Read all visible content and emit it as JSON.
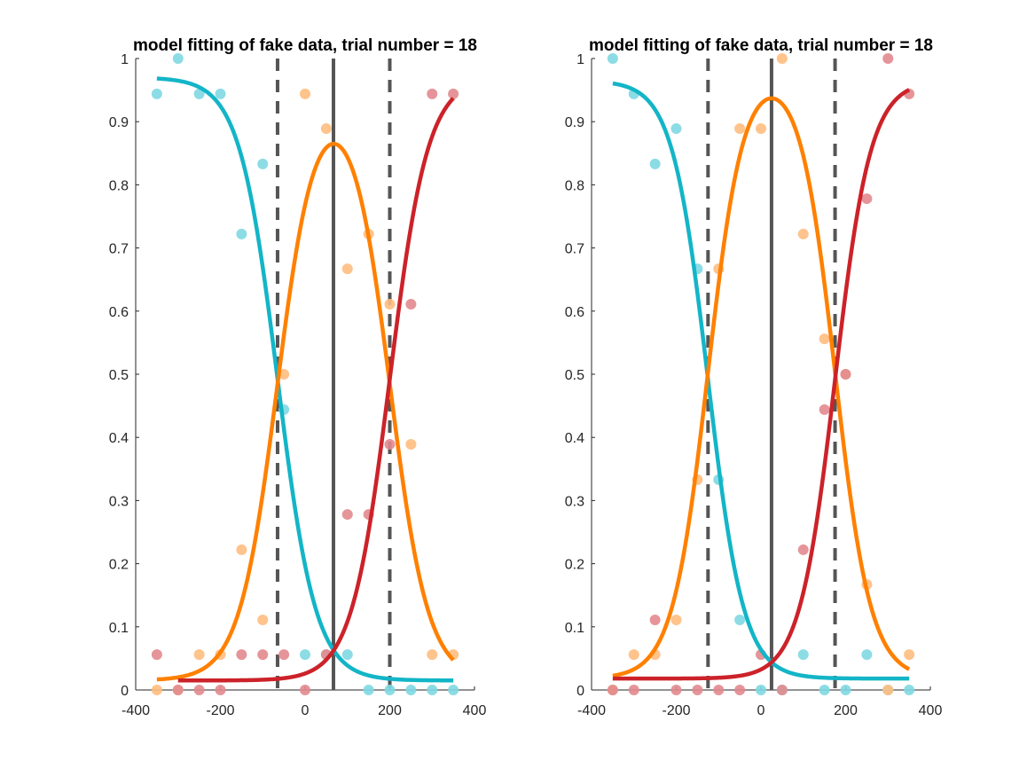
{
  "chart_data": [
    {
      "type": "scatter",
      "title": "model fitting of fake data, trial number = 18",
      "xlabel": "",
      "ylabel": "",
      "xlim": [
        -400,
        400
      ],
      "ylim": [
        0,
        1
      ],
      "xticks": [
        -400,
        -200,
        0,
        200,
        400
      ],
      "yticks": [
        0,
        0.1,
        0.2,
        0.3,
        0.4,
        0.5,
        0.6,
        0.7,
        0.8,
        0.9,
        1
      ],
      "grid": false,
      "legend": "none",
      "vertical_lines": [
        {
          "x": -65,
          "style": "dashed",
          "color": "#555555"
        },
        {
          "x": 67,
          "style": "solid",
          "color": "#555555"
        },
        {
          "x": 200,
          "style": "dashed",
          "color": "#555555"
        }
      ],
      "series": [
        {
          "color": "#13b5c7",
          "points_color": "#7fd8e2",
          "fit": {
            "kind": "left",
            "x_start": -350,
            "x_end": 350,
            "mu": -65,
            "sigma": 45,
            "low": 0.015,
            "high": 0.97
          },
          "points": [
            [
              -350,
              0.944
            ],
            [
              -300,
              1
            ],
            [
              -250,
              0.944
            ],
            [
              -200,
              0.944
            ],
            [
              -150,
              0.722
            ],
            [
              -100,
              0.833
            ],
            [
              -50,
              0.444
            ],
            [
              0,
              0.056
            ],
            [
              50,
              0.056
            ],
            [
              100,
              0.056
            ],
            [
              150,
              0
            ],
            [
              200,
              0
            ],
            [
              250,
              0
            ],
            [
              300,
              0
            ],
            [
              350,
              0
            ]
          ]
        },
        {
          "color": "#ff8000",
          "points_color": "#ffbd80",
          "fit": {
            "kind": "bump",
            "x_start": -350,
            "x_end": 350,
            "mu1": -65,
            "mu2": 200,
            "sigma": 45,
            "low": 0.015,
            "high": 0.97,
            "peak": 0.865
          },
          "points": [
            [
              -350,
              0
            ],
            [
              -300,
              0
            ],
            [
              -250,
              0.056
            ],
            [
              -200,
              0.056
            ],
            [
              -150,
              0.222
            ],
            [
              -100,
              0.111
            ],
            [
              -50,
              0.5
            ],
            [
              0,
              0.944
            ],
            [
              50,
              0.889
            ],
            [
              100,
              0.667
            ],
            [
              150,
              0.722
            ],
            [
              200,
              0.611
            ],
            [
              250,
              0.389
            ],
            [
              300,
              0.056
            ],
            [
              350,
              0.056
            ]
          ]
        },
        {
          "color": "#cc2229",
          "points_color": "#e28a8e",
          "fit": {
            "kind": "right",
            "x_start": -300,
            "x_end": 350,
            "mu": 200,
            "sigma": 45,
            "low": 0.015,
            "high": 0.97
          },
          "points": [
            [
              -350,
              0.056
            ],
            [
              -300,
              0
            ],
            [
              -250,
              0
            ],
            [
              -200,
              0
            ],
            [
              -150,
              0.056
            ],
            [
              -100,
              0.056
            ],
            [
              -50,
              0.056
            ],
            [
              0,
              0
            ],
            [
              50,
              0.056
            ],
            [
              100,
              0.278
            ],
            [
              150,
              0.278
            ],
            [
              200,
              0.389
            ],
            [
              250,
              0.611
            ],
            [
              300,
              0.944
            ],
            [
              350,
              0.944
            ]
          ]
        }
      ]
    },
    {
      "type": "scatter",
      "title": "model fitting of fake data, trial number = 18",
      "xlabel": "",
      "ylabel": "",
      "xlim": [
        -400,
        400
      ],
      "ylim": [
        0,
        1
      ],
      "xticks": [
        -400,
        -200,
        0,
        200,
        400
      ],
      "yticks": [
        0,
        0.1,
        0.2,
        0.3,
        0.4,
        0.5,
        0.6,
        0.7,
        0.8,
        0.9,
        1
      ],
      "grid": false,
      "legend": "none",
      "vertical_lines": [
        {
          "x": -125,
          "style": "dashed",
          "color": "#555555"
        },
        {
          "x": 25,
          "style": "solid",
          "color": "#555555"
        },
        {
          "x": 175,
          "style": "dashed",
          "color": "#555555"
        }
      ],
      "series": [
        {
          "color": "#13b5c7",
          "points_color": "#7fd8e2",
          "fit": {
            "kind": "left",
            "x_start": -350,
            "x_end": 350,
            "mu": -125,
            "sigma": 42,
            "low": 0.018,
            "high": 0.965
          },
          "points": [
            [
              -350,
              1
            ],
            [
              -300,
              0.944
            ],
            [
              -250,
              0.833
            ],
            [
              -200,
              0.889
            ],
            [
              -150,
              0.667
            ],
            [
              -100,
              0.333
            ],
            [
              -50,
              0.111
            ],
            [
              0,
              0
            ],
            [
              50,
              0
            ],
            [
              100,
              0.056
            ],
            [
              150,
              0
            ],
            [
              200,
              0
            ],
            [
              250,
              0.056
            ],
            [
              300,
              0
            ],
            [
              350,
              0
            ]
          ]
        },
        {
          "color": "#ff8000",
          "points_color": "#ffbd80",
          "fit": {
            "kind": "bump",
            "x_start": -350,
            "x_end": 350,
            "mu1": -125,
            "mu2": 175,
            "sigma": 42,
            "low": 0.018,
            "high": 0.965,
            "peak": 0.937
          },
          "points": [
            [
              -350,
              0
            ],
            [
              -300,
              0.056
            ],
            [
              -250,
              0.056
            ],
            [
              -200,
              0.111
            ],
            [
              -150,
              0.333
            ],
            [
              -100,
              0.667
            ],
            [
              -50,
              0.889
            ],
            [
              0,
              0.889
            ],
            [
              50,
              1
            ],
            [
              100,
              0.722
            ],
            [
              150,
              0.556
            ],
            [
              200,
              0.5
            ],
            [
              250,
              0.167
            ],
            [
              300,
              0
            ],
            [
              350,
              0.056
            ]
          ]
        },
        {
          "color": "#cc2229",
          "points_color": "#e28a8e",
          "fit": {
            "kind": "right",
            "x_start": -350,
            "x_end": 350,
            "mu": 175,
            "sigma": 42,
            "low": 0.018,
            "high": 0.965
          },
          "points": [
            [
              -350,
              0
            ],
            [
              -300,
              0
            ],
            [
              -250,
              0.111
            ],
            [
              -200,
              0
            ],
            [
              -150,
              0
            ],
            [
              -100,
              0
            ],
            [
              -50,
              0
            ],
            [
              0,
              0.056
            ],
            [
              50,
              0
            ],
            [
              100,
              0.222
            ],
            [
              150,
              0.444
            ],
            [
              200,
              0.5
            ],
            [
              250,
              0.778
            ],
            [
              300,
              1
            ],
            [
              350,
              0.944
            ]
          ]
        }
      ]
    }
  ]
}
